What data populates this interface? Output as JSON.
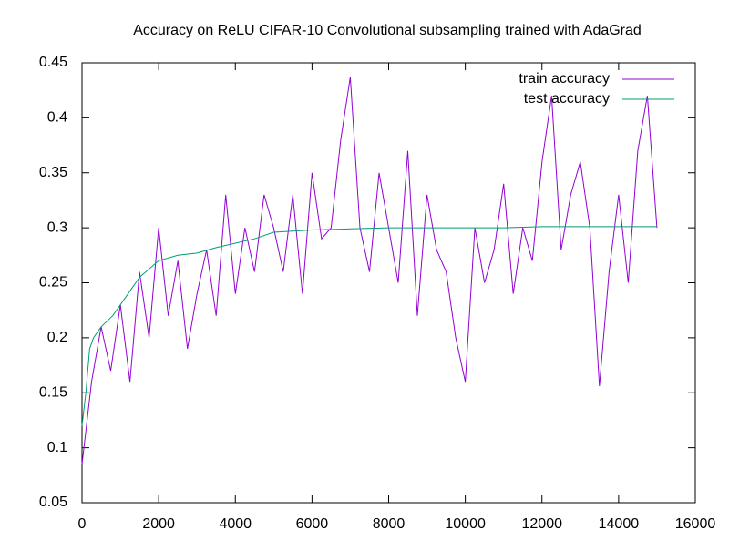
{
  "chart_data": {
    "type": "line",
    "title": "Accuracy on ReLU CIFAR-10 Convolutional subsampling trained with AdaGrad",
    "xlim": [
      0,
      16000
    ],
    "xticks": [
      0,
      2000,
      4000,
      6000,
      8000,
      10000,
      12000,
      14000,
      16000
    ],
    "ylim": [
      0.05,
      0.45
    ],
    "yticks": [
      0.05,
      0.1,
      0.15,
      0.2,
      0.25,
      0.3,
      0.35,
      0.4,
      0.45
    ],
    "legend": "top-right",
    "series": [
      {
        "name": "train accuracy",
        "color": "#9400d3",
        "x": [
          0,
          250,
          500,
          750,
          1000,
          1250,
          1500,
          1750,
          2000,
          2250,
          2500,
          2750,
          3000,
          3250,
          3500,
          3750,
          4000,
          4250,
          4500,
          4750,
          5000,
          5250,
          5500,
          5750,
          6000,
          6250,
          6500,
          6750,
          7000,
          7250,
          7500,
          7750,
          8000,
          8250,
          8500,
          8750,
          9000,
          9250,
          9500,
          9750,
          10000,
          10250,
          10500,
          10750,
          11000,
          11250,
          11500,
          11750,
          12000,
          12250,
          12500,
          12750,
          13000,
          13250,
          13500,
          13750,
          14000,
          14250,
          14500,
          14750,
          15000
        ],
        "values": [
          0.085,
          0.16,
          0.21,
          0.17,
          0.23,
          0.16,
          0.26,
          0.2,
          0.3,
          0.22,
          0.27,
          0.19,
          0.24,
          0.28,
          0.22,
          0.33,
          0.24,
          0.3,
          0.26,
          0.33,
          0.3,
          0.26,
          0.33,
          0.24,
          0.35,
          0.29,
          0.3,
          0.38,
          0.437,
          0.3,
          0.26,
          0.35,
          0.3,
          0.25,
          0.37,
          0.22,
          0.33,
          0.28,
          0.26,
          0.2,
          0.16,
          0.3,
          0.25,
          0.28,
          0.34,
          0.24,
          0.3,
          0.27,
          0.36,
          0.42,
          0.28,
          0.33,
          0.36,
          0.3,
          0.156,
          0.26,
          0.33,
          0.25,
          0.37,
          0.42,
          0.3
        ]
      },
      {
        "name": "test accuracy",
        "color": "#009e73",
        "x": [
          0,
          100,
          200,
          300,
          500,
          800,
          1000,
          1500,
          2000,
          2500,
          3000,
          3500,
          4000,
          4500,
          5000,
          6000,
          7000,
          8000,
          9000,
          10000,
          11000,
          12000,
          13000,
          14000,
          15000
        ],
        "values": [
          0.12,
          0.15,
          0.19,
          0.2,
          0.21,
          0.22,
          0.23,
          0.255,
          0.27,
          0.275,
          0.277,
          0.282,
          0.286,
          0.29,
          0.296,
          0.298,
          0.299,
          0.3,
          0.3,
          0.3,
          0.3,
          0.301,
          0.301,
          0.301,
          0.301
        ]
      }
    ]
  }
}
